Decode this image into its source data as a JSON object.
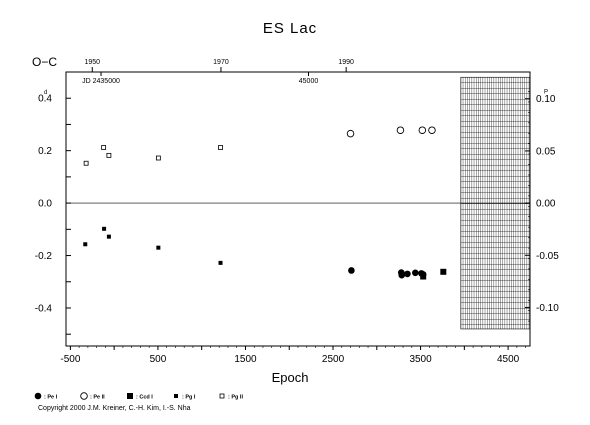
{
  "chart_data": {
    "type": "scatter",
    "title": "ES Lac",
    "xlabel": "Epoch",
    "ylabel": "O−C",
    "y_unit_left": "d",
    "y_unit_right": "P",
    "xlim": [
      -550,
      4750
    ],
    "ylim": [
      -0.545,
      0.5
    ],
    "x_ticks": [
      "-500",
      "0",
      "500",
      "1000",
      "1500",
      "2000",
      "2500",
      "3000",
      "3500",
      "4000",
      "4500"
    ],
    "x_tick_labels": [
      {
        "x": -500,
        "label": "-500"
      },
      {
        "x": 500,
        "label": "500"
      },
      {
        "x": 1500,
        "label": "1500"
      },
      {
        "x": 2500,
        "label": "2500"
      },
      {
        "x": 3500,
        "label": "3500"
      },
      {
        "x": 4500,
        "label": "4500"
      }
    ],
    "y_tick_labels_left": [
      {
        "y": 0.4,
        "label": "0.4"
      },
      {
        "y": 0.2,
        "label": "0.2"
      },
      {
        "y": 0.0,
        "label": "0.0"
      },
      {
        "y": -0.2,
        "label": "-0.2"
      },
      {
        "y": -0.4,
        "label": "-0.4"
      }
    ],
    "y_tick_labels_right": [
      {
        "y": 0.398,
        "label": "0.10"
      },
      {
        "y": 0.199,
        "label": "0.05"
      },
      {
        "y": 0.0,
        "label": "0.00"
      },
      {
        "y": -0.199,
        "label": "-0.05"
      },
      {
        "y": -0.398,
        "label": "-0.10"
      }
    ],
    "top_axis_years": [
      {
        "x": -250,
        "label": "1950"
      },
      {
        "x": 1220,
        "label": "1970"
      },
      {
        "x": 2650,
        "label": "1990"
      }
    ],
    "top_axis_jd": [
      {
        "x": -150,
        "label": "JD 2435000"
      },
      {
        "x": 2220,
        "label": "45000"
      }
    ],
    "hatched_region_x": [
      3960,
      4750
    ],
    "series": [
      {
        "name": ": Pe I",
        "marker": "filled-circle",
        "points": [
          [
            2710,
            -0.257
          ],
          [
            3280,
            -0.265
          ],
          [
            3285,
            -0.275
          ],
          [
            3350,
            -0.27
          ],
          [
            3440,
            -0.266
          ],
          [
            3510,
            -0.268
          ],
          [
            3530,
            -0.272
          ]
        ]
      },
      {
        "name": ": Pe II",
        "marker": "open-circle",
        "points": [
          [
            2700,
            0.265
          ],
          [
            3270,
            0.278
          ],
          [
            3520,
            0.278
          ],
          [
            3630,
            0.278
          ]
        ]
      },
      {
        "name": ": Ccd I",
        "marker": "filled-square",
        "points": [
          [
            3760,
            -0.262
          ],
          [
            3530,
            -0.28
          ]
        ]
      },
      {
        "name": ": Pg I",
        "marker": "small-filled-square",
        "points": [
          [
            -330,
            -0.157
          ],
          [
            -115,
            -0.098
          ],
          [
            -60,
            -0.128
          ],
          [
            505,
            -0.17
          ],
          [
            1215,
            -0.228
          ]
        ]
      },
      {
        "name": ": Pg II",
        "marker": "small-open-square",
        "points": [
          [
            -320,
            0.152
          ],
          [
            -120,
            0.212
          ],
          [
            -60,
            0.182
          ],
          [
            505,
            0.172
          ],
          [
            1215,
            0.212
          ]
        ]
      }
    ]
  },
  "copyright": "Copyright 2000 J.M. Kreiner, C.-H. Kim, I.-S. Nha"
}
